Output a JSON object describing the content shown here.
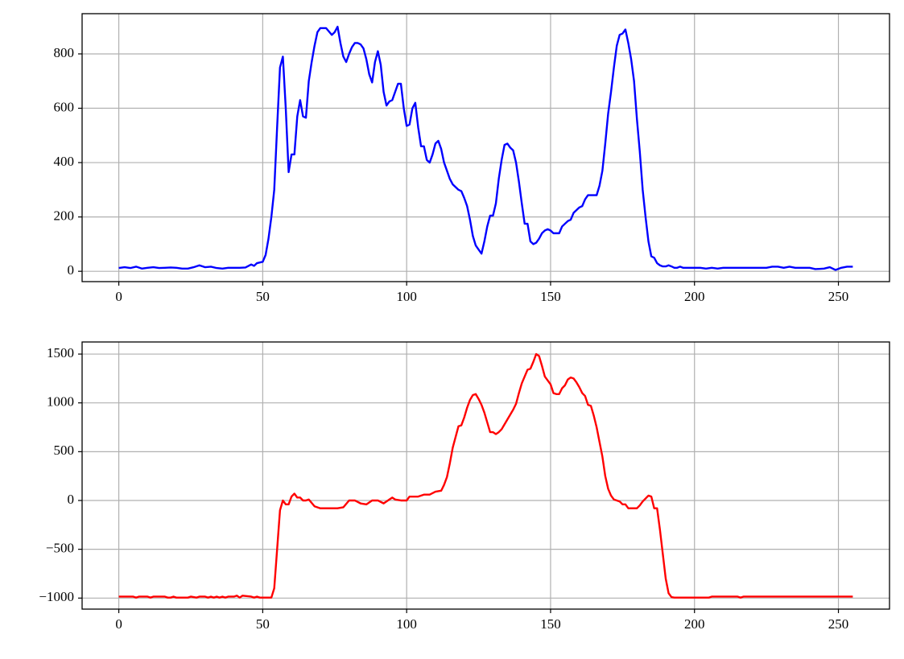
{
  "chart_data": [
    {
      "type": "line",
      "color": "#0000ff",
      "grid": true,
      "xlim": [
        -12.75,
        267.75
      ],
      "ylim": [
        -38,
        948
      ],
      "xticks": [
        0,
        50,
        100,
        150,
        200,
        250
      ],
      "yticks": [
        0,
        200,
        400,
        600,
        800
      ],
      "x": [
        0,
        2,
        4,
        6,
        8,
        10,
        12,
        14,
        16,
        18,
        20,
        22,
        24,
        26,
        28,
        30,
        32,
        34,
        36,
        38,
        40,
        42,
        44,
        46,
        47,
        48,
        50,
        51,
        52,
        53,
        54,
        55,
        56,
        57,
        58,
        59,
        60,
        61,
        62,
        63,
        64,
        65,
        66,
        67,
        68,
        69,
        70,
        72,
        74,
        75,
        76,
        77,
        78,
        79,
        80,
        81,
        82,
        83,
        84,
        85,
        86,
        87,
        88,
        89,
        90,
        91,
        92,
        93,
        94,
        95,
        96,
        97,
        98,
        99,
        100,
        101,
        102,
        103,
        104,
        105,
        106,
        107,
        108,
        109,
        110,
        111,
        112,
        113,
        114,
        115,
        116,
        117,
        118,
        119,
        120,
        121,
        122,
        123,
        124,
        125,
        126,
        127,
        128,
        129,
        130,
        131,
        132,
        133,
        134,
        135,
        136,
        137,
        138,
        139,
        140,
        141,
        142,
        143,
        144,
        145,
        146,
        147,
        148,
        149,
        150,
        151,
        152,
        153,
        154,
        155,
        156,
        157,
        158,
        159,
        160,
        161,
        162,
        163,
        164,
        165,
        166,
        167,
        168,
        169,
        170,
        171,
        172,
        173,
        174,
        175,
        176,
        177,
        178,
        179,
        180,
        181,
        182,
        183,
        184,
        185,
        186,
        187,
        188,
        189,
        190,
        191,
        192,
        193,
        194,
        195,
        196,
        198,
        200,
        202,
        204,
        206,
        208,
        210,
        215,
        220,
        225,
        227,
        229,
        231,
        233,
        235,
        240,
        242,
        245,
        247,
        249,
        251,
        253,
        255
      ],
      "values": [
        12,
        15,
        12,
        17,
        10,
        13,
        15,
        12,
        13,
        14,
        13,
        10,
        10,
        15,
        22,
        15,
        17,
        12,
        10,
        13,
        13,
        13,
        14,
        25,
        20,
        30,
        35,
        60,
        120,
        200,
        300,
        530,
        750,
        790,
        600,
        365,
        430,
        430,
        570,
        630,
        570,
        565,
        700,
        770,
        830,
        880,
        895,
        895,
        870,
        880,
        900,
        840,
        790,
        770,
        800,
        825,
        840,
        840,
        835,
        820,
        780,
        725,
        695,
        770,
        810,
        760,
        660,
        610,
        625,
        630,
        660,
        690,
        690,
        600,
        535,
        540,
        600,
        620,
        530,
        460,
        460,
        410,
        400,
        430,
        470,
        480,
        450,
        400,
        370,
        340,
        320,
        310,
        300,
        295,
        270,
        240,
        190,
        130,
        95,
        80,
        65,
        110,
        165,
        205,
        205,
        250,
        340,
        410,
        465,
        470,
        455,
        445,
        400,
        330,
        250,
        175,
        175,
        110,
        100,
        105,
        120,
        140,
        150,
        155,
        150,
        140,
        140,
        140,
        165,
        175,
        185,
        190,
        215,
        225,
        235,
        240,
        265,
        280,
        280,
        280,
        280,
        315,
        370,
        470,
        580,
        660,
        750,
        830,
        870,
        875,
        890,
        840,
        780,
        700,
        560,
        440,
        300,
        200,
        110,
        55,
        50,
        30,
        22,
        18,
        18,
        22,
        18,
        13,
        13,
        17,
        13,
        13,
        13,
        13,
        10,
        13,
        10,
        13,
        13,
        13,
        13,
        17,
        17,
        13,
        17,
        13,
        13,
        8,
        10,
        15,
        5,
        13,
        17,
        17
      ]
    },
    {
      "type": "line",
      "color": "#ff0000",
      "grid": true,
      "xlim": [
        -12.75,
        267.75
      ],
      "ylim": [
        -1113,
        1624
      ],
      "xticks": [
        0,
        50,
        100,
        150,
        200,
        250
      ],
      "yticks": [
        {
          "value": -1000,
          "label": "−1000"
        },
        {
          "value": -500,
          "label": "−500"
        },
        0,
        500,
        1000,
        1500
      ],
      "x": [
        0,
        5,
        6,
        7,
        10,
        11,
        12,
        16,
        17,
        18,
        19,
        20,
        24,
        25,
        27,
        28,
        30,
        31,
        32,
        33,
        34,
        35,
        36,
        37,
        38,
        40,
        41,
        42,
        43,
        46,
        47,
        48,
        49,
        53,
        54,
        55,
        56,
        57,
        58,
        59,
        60,
        61,
        62,
        63,
        64,
        65,
        66,
        68,
        70,
        72,
        76,
        78,
        80,
        82,
        84,
        86,
        88,
        90,
        92,
        94,
        95,
        96,
        98,
        100,
        101,
        104,
        106,
        108,
        110,
        112,
        113,
        114,
        115,
        116,
        117,
        118,
        119,
        120,
        121,
        122,
        123,
        124,
        125,
        126,
        127,
        128,
        129,
        130,
        131,
        132,
        133,
        134,
        136,
        137,
        138,
        139,
        140,
        141,
        142,
        143,
        144,
        145,
        146,
        147,
        148,
        149,
        150,
        151,
        152,
        153,
        154,
        155,
        156,
        157,
        158,
        159,
        160,
        161,
        162,
        163,
        164,
        165,
        166,
        167,
        168,
        169,
        170,
        171,
        172,
        173,
        174,
        175,
        176,
        177,
        180,
        181,
        182,
        183,
        184,
        185,
        186,
        187,
        188,
        189,
        190,
        191,
        192,
        193,
        205,
        206,
        215,
        216,
        217,
        255
      ],
      "values": [
        -985,
        -985,
        -995,
        -985,
        -985,
        -995,
        -985,
        -985,
        -995,
        -995,
        -985,
        -995,
        -995,
        -985,
        -995,
        -985,
        -985,
        -995,
        -985,
        -995,
        -985,
        -995,
        -985,
        -995,
        -985,
        -985,
        -975,
        -995,
        -975,
        -985,
        -995,
        -985,
        -995,
        -995,
        -900,
        -500,
        -100,
        0,
        -40,
        -40,
        40,
        70,
        30,
        30,
        0,
        0,
        10,
        -60,
        -80,
        -80,
        -80,
        -70,
        0,
        0,
        -30,
        -40,
        0,
        0,
        -30,
        10,
        30,
        10,
        0,
        0,
        40,
        40,
        60,
        60,
        90,
        100,
        160,
        240,
        380,
        540,
        650,
        760,
        770,
        850,
        950,
        1030,
        1080,
        1090,
        1040,
        980,
        900,
        800,
        700,
        700,
        680,
        700,
        730,
        780,
        880,
        930,
        990,
        1100,
        1200,
        1270,
        1340,
        1350,
        1420,
        1500,
        1480,
        1380,
        1270,
        1230,
        1190,
        1100,
        1090,
        1090,
        1150,
        1180,
        1240,
        1260,
        1250,
        1210,
        1160,
        1100,
        1070,
        980,
        970,
        870,
        750,
        600,
        450,
        250,
        120,
        50,
        10,
        0,
        -10,
        -40,
        -40,
        -80,
        -80,
        -50,
        -10,
        20,
        50,
        40,
        -80,
        -80,
        -300,
        -550,
        -800,
        -950,
        -990,
        -995,
        -995,
        -985,
        -985,
        -995,
        -985,
        -985
      ]
    }
  ]
}
